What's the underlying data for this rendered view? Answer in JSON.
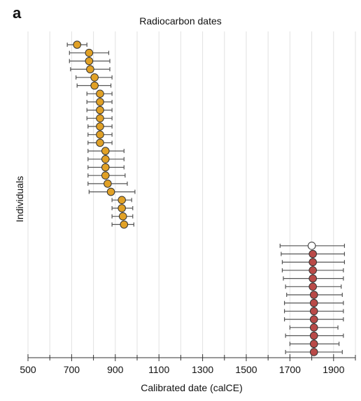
{
  "panel_label": "a",
  "chart_data": {
    "type": "scatter",
    "title": "Radiocarbon dates",
    "xlabel": "Calibrated date (calCE)",
    "ylabel": "Individuals",
    "xlim": [
      500,
      2000
    ],
    "x_ticks": [
      500,
      700,
      900,
      1100,
      1300,
      1500,
      1700,
      1900
    ],
    "x_minor_ticks": [
      600,
      800,
      1000,
      1200,
      1400,
      1600,
      1800,
      2000
    ],
    "grid": "vertical",
    "legend": "none",
    "colors": {
      "orange": "#E1A126",
      "red": "#B94A48",
      "white": "#ffffff",
      "grid": "#e2e2e2",
      "errorbar": "#555555"
    },
    "series": [
      {
        "color": "orange",
        "points": [
          {
            "x": 725,
            "lo": 680,
            "hi": 770
          },
          {
            "x": 780,
            "lo": 690,
            "hi": 870
          },
          {
            "x": 780,
            "lo": 690,
            "hi": 875
          },
          {
            "x": 785,
            "lo": 695,
            "hi": 875
          },
          {
            "x": 805,
            "lo": 720,
            "hi": 885
          },
          {
            "x": 805,
            "lo": 725,
            "hi": 880
          },
          {
            "x": 830,
            "lo": 770,
            "hi": 885
          },
          {
            "x": 830,
            "lo": 770,
            "hi": 885
          },
          {
            "x": 830,
            "lo": 770,
            "hi": 885
          },
          {
            "x": 830,
            "lo": 770,
            "hi": 885
          },
          {
            "x": 830,
            "lo": 775,
            "hi": 885
          },
          {
            "x": 830,
            "lo": 775,
            "hi": 885
          },
          {
            "x": 830,
            "lo": 775,
            "hi": 885
          },
          {
            "x": 855,
            "lo": 775,
            "hi": 940
          },
          {
            "x": 855,
            "lo": 775,
            "hi": 940
          },
          {
            "x": 855,
            "lo": 775,
            "hi": 940
          },
          {
            "x": 855,
            "lo": 775,
            "hi": 945
          },
          {
            "x": 865,
            "lo": 775,
            "hi": 955
          },
          {
            "x": 880,
            "lo": 780,
            "hi": 990
          },
          {
            "x": 930,
            "lo": 885,
            "hi": 975
          },
          {
            "x": 930,
            "lo": 885,
            "hi": 980
          },
          {
            "x": 935,
            "lo": 885,
            "hi": 980
          },
          {
            "x": 940,
            "lo": 885,
            "hi": 985
          }
        ]
      },
      {
        "color": "red",
        "points": [
          {
            "x": 1800,
            "lo": 1655,
            "hi": 1950,
            "fill": "white"
          },
          {
            "x": 1805,
            "lo": 1660,
            "hi": 1950
          },
          {
            "x": 1805,
            "lo": 1665,
            "hi": 1950
          },
          {
            "x": 1805,
            "lo": 1665,
            "hi": 1945
          },
          {
            "x": 1805,
            "lo": 1670,
            "hi": 1945
          },
          {
            "x": 1805,
            "lo": 1680,
            "hi": 1935
          },
          {
            "x": 1810,
            "lo": 1685,
            "hi": 1940
          },
          {
            "x": 1810,
            "lo": 1675,
            "hi": 1945
          },
          {
            "x": 1810,
            "lo": 1675,
            "hi": 1945
          },
          {
            "x": 1810,
            "lo": 1675,
            "hi": 1945
          },
          {
            "x": 1810,
            "lo": 1700,
            "hi": 1920
          },
          {
            "x": 1810,
            "lo": 1680,
            "hi": 1945
          },
          {
            "x": 1810,
            "lo": 1700,
            "hi": 1925
          },
          {
            "x": 1810,
            "lo": 1680,
            "hi": 1940
          }
        ]
      }
    ]
  }
}
